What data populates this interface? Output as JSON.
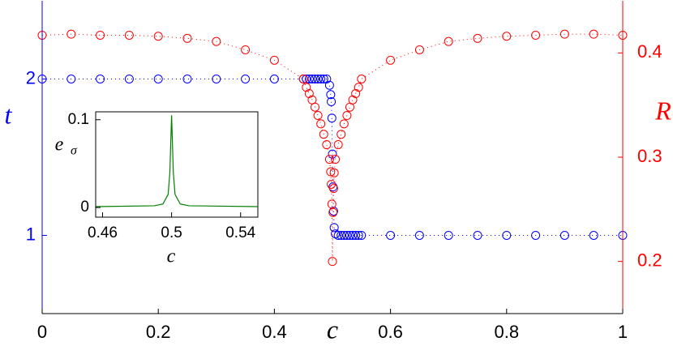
{
  "chart_data": [
    {
      "type": "line",
      "xlabel": "c",
      "ylabel": "t",
      "y2label": "R",
      "x": [
        0,
        0.05,
        0.1,
        0.15,
        0.2,
        0.25,
        0.3,
        0.35,
        0.4,
        0.45,
        0.455,
        0.46,
        0.465,
        0.47,
        0.475,
        0.48,
        0.485,
        0.49,
        0.495,
        0.497,
        0.498,
        0.499,
        0.5,
        0.501,
        0.502,
        0.503,
        0.505,
        0.51,
        0.515,
        0.52,
        0.525,
        0.53,
        0.535,
        0.54,
        0.545,
        0.55,
        0.6,
        0.65,
        0.7,
        0.75,
        0.8,
        0.85,
        0.9,
        0.95,
        1
      ],
      "series": [
        {
          "color": "#0000ff",
          "values": [
            2,
            2,
            2,
            2,
            2,
            2,
            2,
            2,
            2,
            2,
            2,
            2,
            2,
            2,
            2,
            2,
            2,
            2,
            1.96,
            1.9,
            1.855,
            1.75,
            1.52,
            1.31,
            1.155,
            1.05,
            1.01,
            1,
            1,
            1,
            1,
            1,
            1,
            1,
            1,
            1,
            1,
            1,
            1,
            1,
            1,
            1,
            1,
            1,
            1
          ]
        },
        {
          "color": "#ff0000",
          "axis": "y2",
          "values": [
            0.417,
            0.418,
            0.417,
            0.417,
            0.416,
            0.414,
            0.411,
            0.403,
            0.393,
            0.375,
            0.367,
            0.361,
            0.355,
            0.348,
            0.34,
            0.332,
            0.322,
            0.312,
            0.298,
            0.286,
            0.274,
            0.255,
            0.2,
            0.247,
            0.27,
            0.285,
            0.298,
            0.312,
            0.322,
            0.332,
            0.34,
            0.348,
            0.355,
            0.361,
            0.367,
            0.375,
            0.393,
            0.403,
            0.411,
            0.414,
            0.416,
            0.417,
            0.418,
            0.418,
            0.417
          ]
        }
      ],
      "xlim": [
        0,
        1
      ],
      "xticks": [
        0,
        0.2,
        0.4,
        0.6,
        0.8,
        1
      ],
      "ylim": [
        0.5,
        2.5
      ],
      "yticks": [
        1,
        2
      ],
      "y2lim": [
        0.15,
        0.45
      ],
      "y2ticks": [
        0.2,
        0.3,
        0.4
      ]
    },
    {
      "type": "line",
      "xlabel": "c",
      "ylabel": "e",
      "ylabel_subscript": "σ",
      "x": [
        0.456,
        0.49,
        0.495,
        0.498,
        0.499,
        0.5,
        0.501,
        0.502,
        0.505,
        0.51,
        0.55
      ],
      "series": [
        {
          "color": "#008000",
          "values": [
            0.001,
            0.002,
            0.004,
            0.015,
            0.04,
            0.105,
            0.04,
            0.015,
            0.004,
            0.002,
            0.001
          ]
        }
      ],
      "xlim": [
        0.456,
        0.55
      ],
      "xticks": [
        0.46,
        0.5,
        0.54
      ],
      "ylim": [
        -0.011,
        0.109
      ],
      "yticks": [
        0,
        0.1
      ]
    }
  ]
}
